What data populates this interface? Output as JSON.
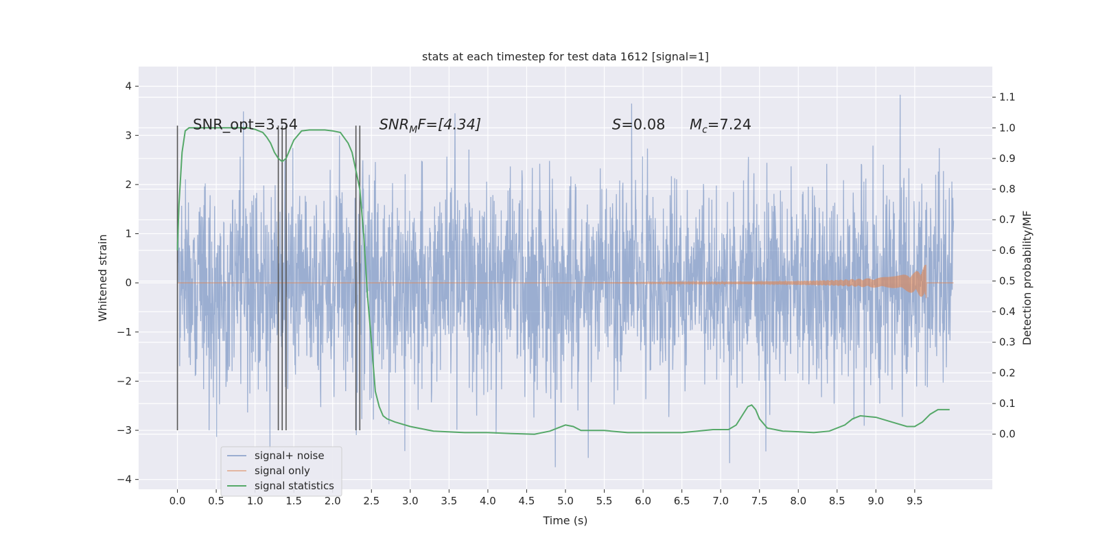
{
  "chart_data": {
    "type": "line",
    "title": "stats at each timestep for test data 1612 [signal=1]",
    "xlabel": "Time (s)",
    "ylabel": "Whitened strain",
    "y2label": "Detection probability/MF",
    "xlim": [
      -0.5,
      10.5
    ],
    "ylim": [
      -4.2,
      4.4
    ],
    "y2lim": [
      -0.18,
      1.2
    ],
    "x_ticks": [
      "0.0",
      "0.5",
      "1.0",
      "1.5",
      "2.0",
      "2.5",
      "3.0",
      "3.5",
      "4.0",
      "4.5",
      "5.0",
      "5.5",
      "6.0",
      "6.5",
      "7.0",
      "7.5",
      "8.0",
      "8.5",
      "9.0",
      "9.5"
    ],
    "y_ticks": [
      "−4",
      "−3",
      "−2",
      "−1",
      "0",
      "1",
      "2",
      "3",
      "4"
    ],
    "y2_ticks": [
      "0.0",
      "0.1",
      "0.2",
      "0.3",
      "0.4",
      "0.5",
      "0.6",
      "0.7",
      "0.8",
      "0.9",
      "1.0",
      "1.1"
    ],
    "grid": true,
    "legend_position": "lower-left",
    "series": [
      {
        "name": "signal+ noise",
        "color": "#4c72b0",
        "description": "whitened strain, dense noise spanning about ±2, spikes up to about ±4, x 0.0–10.0"
      },
      {
        "name": "signal only",
        "color": "#dd8452",
        "envelope_t": [
          0.0,
          5.0,
          6.0,
          7.0,
          8.0,
          8.5,
          9.0,
          9.3,
          9.5,
          9.6,
          9.65
        ],
        "envelope_amp": [
          0.0,
          0.0,
          0.01,
          0.02,
          0.04,
          0.06,
          0.1,
          0.15,
          0.22,
          0.3,
          0.4
        ]
      },
      {
        "name": "signal statistics",
        "color": "#55a868",
        "x": [
          0.0,
          0.02,
          0.06,
          0.1,
          0.15,
          0.2,
          0.3,
          0.5,
          0.7,
          0.9,
          1.0,
          1.1,
          1.15,
          1.2,
          1.25,
          1.3,
          1.35,
          1.4,
          1.45,
          1.5,
          1.6,
          1.7,
          1.8,
          1.9,
          2.0,
          2.1,
          2.2,
          2.25,
          2.3,
          2.35,
          2.4,
          2.45,
          2.5,
          2.55,
          2.6,
          2.65,
          2.7,
          2.8,
          3.0,
          3.3,
          3.7,
          4.0,
          4.3,
          4.6,
          4.8,
          4.9,
          5.0,
          5.1,
          5.2,
          5.5,
          5.8,
          6.2,
          6.5,
          6.7,
          6.9,
          7.1,
          7.2,
          7.3,
          7.35,
          7.4,
          7.45,
          7.5,
          7.6,
          7.8,
          8.0,
          8.2,
          8.4,
          8.6,
          8.7,
          8.8,
          9.0,
          9.2,
          9.4,
          9.5,
          9.6,
          9.7,
          9.8,
          9.9,
          9.95
        ],
        "y": [
          0.6,
          0.75,
          0.92,
          0.99,
          1.0,
          1.0,
          1.0,
          1.0,
          1.0,
          1.0,
          0.995,
          0.985,
          0.97,
          0.95,
          0.92,
          0.9,
          0.89,
          0.9,
          0.93,
          0.96,
          0.99,
          0.993,
          0.993,
          0.993,
          0.99,
          0.985,
          0.95,
          0.92,
          0.86,
          0.8,
          0.65,
          0.45,
          0.3,
          0.14,
          0.09,
          0.06,
          0.05,
          0.04,
          0.025,
          0.01,
          0.005,
          0.005,
          0.002,
          0.0,
          0.01,
          0.02,
          0.03,
          0.025,
          0.012,
          0.012,
          0.005,
          0.005,
          0.005,
          0.01,
          0.015,
          0.015,
          0.03,
          0.07,
          0.09,
          0.095,
          0.08,
          0.05,
          0.02,
          0.01,
          0.008,
          0.005,
          0.01,
          0.03,
          0.05,
          0.06,
          0.055,
          0.04,
          0.025,
          0.025,
          0.04,
          0.065,
          0.08,
          0.08,
          0.08
        ]
      }
    ],
    "vertical_markers": [
      0.0,
      1.3,
      1.35,
      1.4,
      2.3,
      2.35
    ],
    "annotations": [
      {
        "id": "snr-opt",
        "text": "SNR_opt=3.54",
        "x": 0.2,
        "y2": 1.0
      },
      {
        "id": "snr-mf",
        "main": "SNR",
        "sub": "M",
        "rest": "F=[4.34]",
        "x": 2.6,
        "y2": 1.0
      },
      {
        "id": "s-stat",
        "main": "S",
        "rest": "=0.08",
        "x": 5.6,
        "y2": 1.0
      },
      {
        "id": "chirp-mass",
        "main": "M",
        "sub": "c",
        "rest": "=7.24",
        "x": 6.6,
        "y2": 1.0
      }
    ]
  }
}
